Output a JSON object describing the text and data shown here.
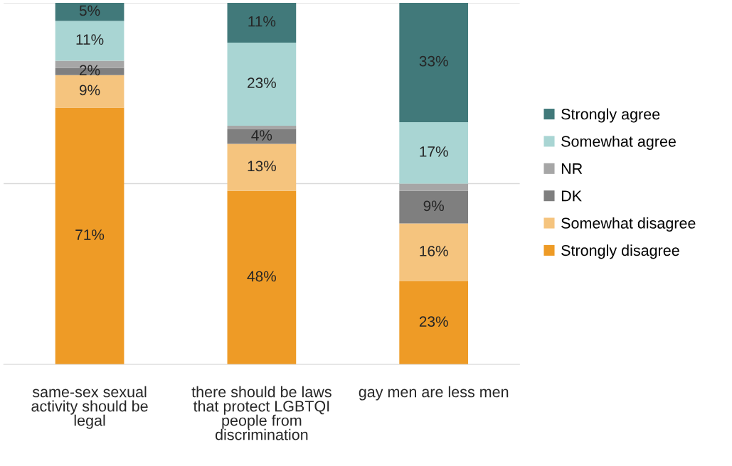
{
  "chart_data": {
    "type": "bar",
    "stacked": true,
    "categories": [
      "same-sex sexual activity should be legal",
      "there should be laws that protect LGBTQI people from discrimination",
      "gay men are less men"
    ],
    "series": [
      {
        "name": "Strongly disagree",
        "color": "#ee9b26",
        "values": [
          71,
          48,
          23
        ],
        "value_labels": [
          "71%",
          "48%",
          "23%"
        ]
      },
      {
        "name": "Somewhat disagree",
        "color": "#f5c47e",
        "values": [
          9,
          13,
          16
        ],
        "value_labels": [
          "9%",
          "13%",
          "16%"
        ]
      },
      {
        "name": "DK",
        "color": "#7f7f7f",
        "values": [
          2,
          4,
          9
        ],
        "value_labels": [
          "2%",
          "4%",
          "9%"
        ]
      },
      {
        "name": "NR",
        "color": "#a6a6a6",
        "values": [
          2,
          1,
          2
        ],
        "value_labels": [
          null,
          null,
          null
        ]
      },
      {
        "name": "Somewhat agree",
        "color": "#a9d5d3",
        "values": [
          11,
          23,
          17
        ],
        "value_labels": [
          "11%",
          "23%",
          "17%"
        ]
      },
      {
        "name": "Strongly agree",
        "color": "#41797a",
        "values": [
          5,
          11,
          33
        ],
        "value_labels": [
          "5%",
          "11%",
          "33%"
        ]
      }
    ],
    "ylim": [
      0,
      100
    ],
    "yticks": [
      {
        "value": 0,
        "label": null
      },
      {
        "value": 50,
        "label": null
      },
      {
        "value": 100,
        "label": null
      }
    ],
    "grid": "y",
    "legend": "right",
    "tick_labels": "x"
  }
}
